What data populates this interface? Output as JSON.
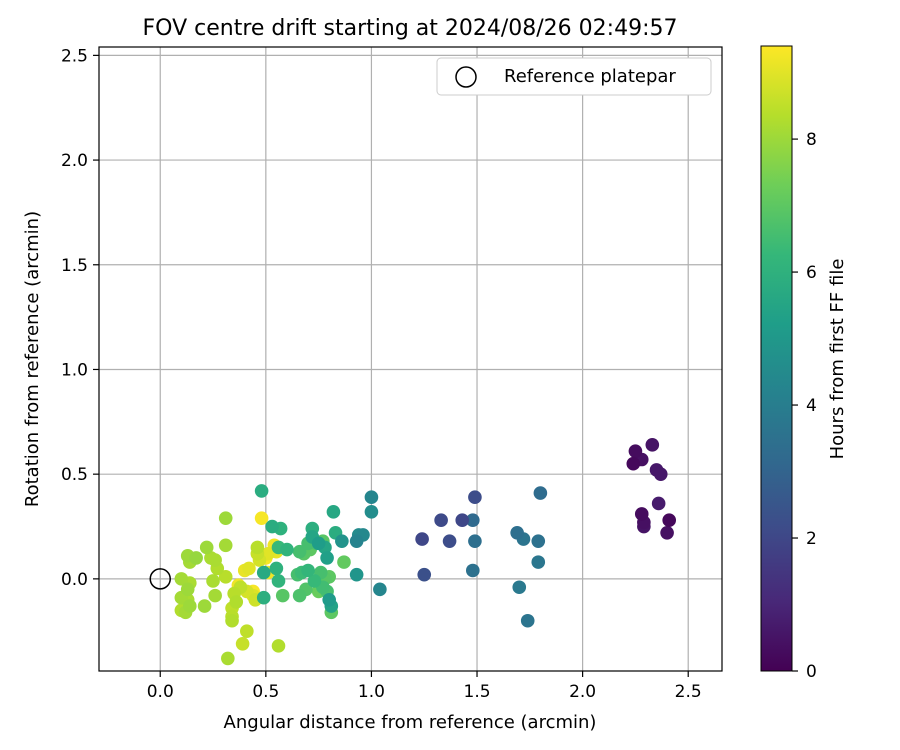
{
  "chart_data": {
    "type": "scatter",
    "title": "FOV centre drift starting at 2024/08/26 02:49:57",
    "xlabel": "Angular distance from reference (arcmin)",
    "ylabel": "Rotation from reference (arcmin)",
    "xlim": [
      -0.29,
      2.66
    ],
    "ylim": [
      -0.44,
      2.54
    ],
    "xticks": [
      "0.0",
      "0.5",
      "1.0",
      "1.5",
      "2.0",
      "2.5"
    ],
    "xtick_values": [
      0,
      0.5,
      1,
      1.5,
      2,
      2.5
    ],
    "yticks": [
      "0.0",
      "0.5",
      "1.0",
      "1.5",
      "2.0",
      "2.5"
    ],
    "ytick_values": [
      0,
      0.5,
      1,
      1.5,
      2,
      2.5
    ],
    "grid": true,
    "legend": {
      "position": "upper right",
      "entries": [
        "Reference platepar"
      ]
    },
    "reference_point": {
      "x": 0.0,
      "y": 0.0
    },
    "colorbar": {
      "label": "Hours from first FF file",
      "colormap": "viridis",
      "range": [
        0,
        9.4
      ],
      "ticks": [
        "0",
        "2",
        "4",
        "6",
        "8"
      ],
      "tick_values": [
        0,
        2,
        4,
        6,
        8
      ]
    },
    "points": [
      {
        "x": 2.25,
        "y": 0.61,
        "c": 0.3
      },
      {
        "x": 2.33,
        "y": 0.64,
        "c": 0.5
      },
      {
        "x": 2.28,
        "y": 0.57,
        "c": 0.4
      },
      {
        "x": 2.24,
        "y": 0.55,
        "c": 0.2
      },
      {
        "x": 2.35,
        "y": 0.52,
        "c": 0.6
      },
      {
        "x": 2.37,
        "y": 0.5,
        "c": 0.6
      },
      {
        "x": 2.36,
        "y": 0.36,
        "c": 0.7
      },
      {
        "x": 2.28,
        "y": 0.31,
        "c": 0.3
      },
      {
        "x": 2.29,
        "y": 0.27,
        "c": 0.4
      },
      {
        "x": 2.29,
        "y": 0.25,
        "c": 0.5
      },
      {
        "x": 2.41,
        "y": 0.28,
        "c": 0.2
      },
      {
        "x": 2.4,
        "y": 0.22,
        "c": 0.4
      },
      {
        "x": 1.49,
        "y": 0.39,
        "c": 2.2
      },
      {
        "x": 1.43,
        "y": 0.28,
        "c": 2.0
      },
      {
        "x": 1.33,
        "y": 0.28,
        "c": 2.1
      },
      {
        "x": 1.24,
        "y": 0.19,
        "c": 2.0
      },
      {
        "x": 1.37,
        "y": 0.18,
        "c": 2.2
      },
      {
        "x": 1.25,
        "y": 0.02,
        "c": 2.3
      },
      {
        "x": 1.48,
        "y": 0.28,
        "c": 3.2
      },
      {
        "x": 1.49,
        "y": 0.18,
        "c": 3.4
      },
      {
        "x": 1.48,
        "y": 0.04,
        "c": 3.5
      },
      {
        "x": 1.8,
        "y": 0.41,
        "c": 3.3
      },
      {
        "x": 1.69,
        "y": 0.22,
        "c": 3.4
      },
      {
        "x": 1.72,
        "y": 0.19,
        "c": 3.6
      },
      {
        "x": 1.79,
        "y": 0.18,
        "c": 3.5
      },
      {
        "x": 1.79,
        "y": 0.08,
        "c": 3.7
      },
      {
        "x": 1.7,
        "y": -0.04,
        "c": 3.8
      },
      {
        "x": 1.74,
        "y": -0.2,
        "c": 3.6
      },
      {
        "x": 1.0,
        "y": 0.39,
        "c": 4.3
      },
      {
        "x": 1.0,
        "y": 0.32,
        "c": 4.6
      },
      {
        "x": 0.96,
        "y": 0.21,
        "c": 4.4
      },
      {
        "x": 0.94,
        "y": 0.21,
        "c": 4.5
      },
      {
        "x": 0.93,
        "y": 0.18,
        "c": 4.2
      },
      {
        "x": 0.86,
        "y": 0.18,
        "c": 4.8
      },
      {
        "x": 0.93,
        "y": 0.02,
        "c": 4.9
      },
      {
        "x": 1.04,
        "y": -0.05,
        "c": 4.3
      },
      {
        "x": 0.82,
        "y": 0.32,
        "c": 5.6
      },
      {
        "x": 0.83,
        "y": 0.22,
        "c": 5.8
      },
      {
        "x": 0.78,
        "y": 0.15,
        "c": 5.5
      },
      {
        "x": 0.75,
        "y": 0.17,
        "c": 5.2
      },
      {
        "x": 0.72,
        "y": 0.2,
        "c": 5.5
      },
      {
        "x": 0.79,
        "y": 0.1,
        "c": 5.3
      },
      {
        "x": 0.81,
        "y": -0.13,
        "c": 5.4
      },
      {
        "x": 0.8,
        "y": -0.1,
        "c": 5.1
      },
      {
        "x": 0.48,
        "y": 0.42,
        "c": 5.8
      },
      {
        "x": 0.53,
        "y": 0.25,
        "c": 5.8
      },
      {
        "x": 0.57,
        "y": 0.24,
        "c": 6.0
      },
      {
        "x": 0.72,
        "y": 0.24,
        "c": 5.9
      },
      {
        "x": 0.56,
        "y": 0.15,
        "c": 6.3
      },
      {
        "x": 0.6,
        "y": 0.14,
        "c": 6.1
      },
      {
        "x": 0.66,
        "y": 0.13,
        "c": 6.6
      },
      {
        "x": 0.49,
        "y": 0.03,
        "c": 5.7
      },
      {
        "x": 0.55,
        "y": 0.05,
        "c": 6.0
      },
      {
        "x": 0.56,
        "y": -0.01,
        "c": 6.1
      },
      {
        "x": 0.49,
        "y": -0.09,
        "c": 5.9
      },
      {
        "x": 0.67,
        "y": 0.03,
        "c": 6.4
      },
      {
        "x": 0.7,
        "y": 0.04,
        "c": 6.2
      },
      {
        "x": 0.73,
        "y": -0.01,
        "c": 6.3
      },
      {
        "x": 0.76,
        "y": 0.03,
        "c": 6.6
      },
      {
        "x": 0.77,
        "y": -0.04,
        "c": 6.5
      },
      {
        "x": 0.79,
        "y": -0.06,
        "c": 6.6
      },
      {
        "x": 0.78,
        "y": 0.0,
        "c": 6.9
      },
      {
        "x": 0.8,
        "y": 0.01,
        "c": 7.0
      },
      {
        "x": 0.69,
        "y": -0.05,
        "c": 6.8
      },
      {
        "x": 0.66,
        "y": -0.08,
        "c": 6.7
      },
      {
        "x": 0.58,
        "y": -0.08,
        "c": 6.9
      },
      {
        "x": 0.68,
        "y": 0.12,
        "c": 6.9
      },
      {
        "x": 0.71,
        "y": 0.14,
        "c": 7.0
      },
      {
        "x": 0.7,
        "y": 0.17,
        "c": 6.6
      },
      {
        "x": 0.74,
        "y": 0.17,
        "c": 6.7
      },
      {
        "x": 0.77,
        "y": 0.18,
        "c": 6.9
      },
      {
        "x": 0.87,
        "y": 0.08,
        "c": 7.1
      },
      {
        "x": 0.81,
        "y": -0.16,
        "c": 7.0
      },
      {
        "x": 0.65,
        "y": 0.02,
        "c": 6.6
      },
      {
        "x": 0.75,
        "y": -0.06,
        "c": 7.2
      },
      {
        "x": 0.56,
        "y": -0.32,
        "c": 8.3
      },
      {
        "x": 0.31,
        "y": 0.29,
        "c": 8.0
      },
      {
        "x": 0.31,
        "y": 0.16,
        "c": 8.1
      },
      {
        "x": 0.22,
        "y": 0.15,
        "c": 8.0
      },
      {
        "x": 0.24,
        "y": 0.1,
        "c": 8.2
      },
      {
        "x": 0.13,
        "y": 0.11,
        "c": 8.0
      },
      {
        "x": 0.17,
        "y": 0.1,
        "c": 7.9
      },
      {
        "x": 0.14,
        "y": 0.08,
        "c": 8.1
      },
      {
        "x": 0.26,
        "y": 0.09,
        "c": 8.2
      },
      {
        "x": 0.27,
        "y": 0.05,
        "c": 8.3
      },
      {
        "x": 0.31,
        "y": 0.01,
        "c": 8.4
      },
      {
        "x": 0.25,
        "y": -0.01,
        "c": 8.2
      },
      {
        "x": 0.26,
        "y": -0.08,
        "c": 8.1
      },
      {
        "x": 0.21,
        "y": -0.13,
        "c": 8.0
      },
      {
        "x": 0.1,
        "y": 0.0,
        "c": 8.1
      },
      {
        "x": 0.14,
        "y": -0.02,
        "c": 8.2
      },
      {
        "x": 0.13,
        "y": -0.05,
        "c": 8.0
      },
      {
        "x": 0.1,
        "y": -0.09,
        "c": 8.1
      },
      {
        "x": 0.13,
        "y": -0.1,
        "c": 8.2
      },
      {
        "x": 0.14,
        "y": -0.13,
        "c": 8.0
      },
      {
        "x": 0.1,
        "y": -0.15,
        "c": 8.3
      },
      {
        "x": 0.12,
        "y": -0.16,
        "c": 8.1
      },
      {
        "x": 0.38,
        "y": -0.04,
        "c": 8.5
      },
      {
        "x": 0.35,
        "y": -0.07,
        "c": 8.4
      },
      {
        "x": 0.36,
        "y": -0.11,
        "c": 8.3
      },
      {
        "x": 0.34,
        "y": -0.14,
        "c": 8.5
      },
      {
        "x": 0.34,
        "y": -0.18,
        "c": 8.4
      },
      {
        "x": 0.34,
        "y": -0.2,
        "c": 8.3
      },
      {
        "x": 0.41,
        "y": -0.25,
        "c": 8.5
      },
      {
        "x": 0.39,
        "y": -0.31,
        "c": 8.6
      },
      {
        "x": 0.32,
        "y": -0.38,
        "c": 8.2
      },
      {
        "x": 0.41,
        "y": -0.06,
        "c": 8.8
      },
      {
        "x": 0.44,
        "y": -0.08,
        "c": 8.9
      },
      {
        "x": 0.45,
        "y": -0.1,
        "c": 8.7
      },
      {
        "x": 0.46,
        "y": 0.15,
        "c": 8.4
      },
      {
        "x": 0.46,
        "y": 0.12,
        "c": 8.6
      },
      {
        "x": 0.47,
        "y": 0.09,
        "c": 8.8
      },
      {
        "x": 0.48,
        "y": 0.29,
        "c": 9.3
      },
      {
        "x": 0.54,
        "y": 0.16,
        "c": 9.2
      },
      {
        "x": 0.55,
        "y": 0.13,
        "c": 9.1
      },
      {
        "x": 0.51,
        "y": 0.12,
        "c": 9.0
      },
      {
        "x": 0.5,
        "y": 0.1,
        "c": 9.3
      },
      {
        "x": 0.51,
        "y": 0.03,
        "c": 9.2
      },
      {
        "x": 0.4,
        "y": 0.04,
        "c": 9.1
      },
      {
        "x": 0.42,
        "y": 0.05,
        "c": 9.0
      },
      {
        "x": 0.37,
        "y": -0.03,
        "c": 9.2
      },
      {
        "x": 0.44,
        "y": -0.06,
        "c": 9.3
      }
    ]
  }
}
